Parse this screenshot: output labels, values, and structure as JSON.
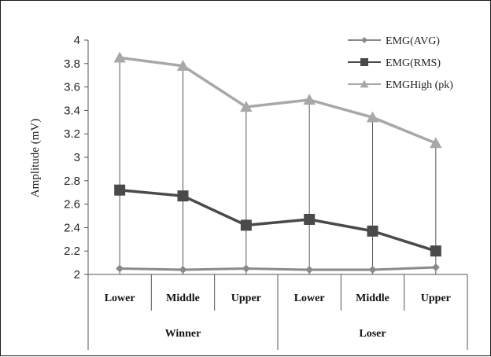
{
  "chart_data": {
    "type": "line",
    "ylabel": "Amplitude (mV)",
    "ylim": [
      2,
      4
    ],
    "yticks": [
      "2",
      "2.2",
      "2.4",
      "2.6",
      "2.8",
      "3",
      "3.2",
      "3.4",
      "3.6",
      "3.8",
      "4"
    ],
    "categories": [
      "Lower",
      "Middle",
      "Upper",
      "Lower",
      "Middle",
      "Upper"
    ],
    "groups": [
      "Winner",
      "Loser"
    ],
    "grid": false,
    "legend_position": "top-right",
    "series": [
      {
        "name": "EMG(AVG)",
        "values": [
          2.05,
          2.04,
          2.05,
          2.04,
          2.04,
          2.06
        ],
        "color": "#8a8a8a",
        "marker": "diamond"
      },
      {
        "name": "EMG(RMS)",
        "values": [
          2.72,
          2.67,
          2.42,
          2.47,
          2.37,
          2.2
        ],
        "color": "#4a4a4a",
        "marker": "square"
      },
      {
        "name": "EMGHigh (pk)",
        "values": [
          3.85,
          3.78,
          3.43,
          3.49,
          3.34,
          3.12
        ],
        "color": "#a8a8a8",
        "marker": "triangle"
      }
    ]
  }
}
